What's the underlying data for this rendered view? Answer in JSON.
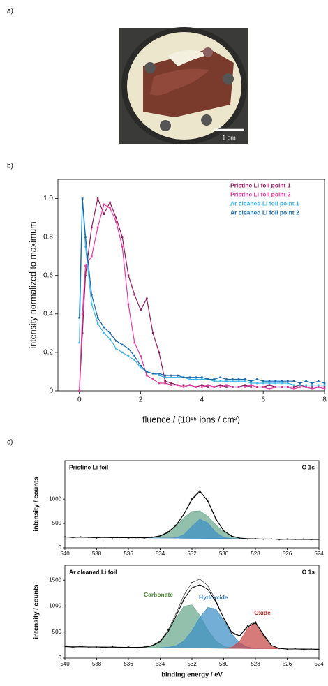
{
  "panel_labels": [
    "a)",
    "b)",
    "c)"
  ],
  "photo": {
    "scale_bar": "1 cm"
  },
  "chart_data": [
    {
      "type": "line",
      "x_label": "fluence / (10¹⁵ ions / cm²)",
      "y_label": "intensity normalized to maximum",
      "xlim": [
        -0.7,
        8
      ],
      "ylim": [
        0,
        1.1
      ],
      "xticks": [
        0,
        2,
        4,
        6,
        8
      ],
      "yticks": [
        0,
        0.2,
        0.4,
        0.6,
        0.8,
        {
          "value": 1,
          "label": "1.0"
        }
      ],
      "legend": "upper right",
      "x": [
        0,
        0.1,
        0.2,
        0.4,
        0.6,
        0.8,
        1.0,
        1.2,
        1.4,
        1.6,
        1.8,
        2.0,
        2.2,
        2.4,
        2.6,
        2.8,
        3.0,
        3.2,
        3.4,
        3.6,
        3.8,
        4.0,
        4.2,
        4.4,
        4.6,
        4.8,
        5.0,
        5.2,
        5.4,
        5.6,
        5.8,
        6.0,
        6.2,
        6.4,
        6.6,
        6.8,
        7.0,
        7.2,
        7.4,
        7.6,
        7.8,
        8.0
      ],
      "series": [
        {
          "name": "Pristine Li foil point 1",
          "color": "#8c1c5c",
          "values": [
            0,
            0.3,
            0.6,
            0.85,
            1.0,
            0.92,
            0.98,
            0.9,
            0.8,
            0.6,
            0.5,
            0.42,
            0.48,
            0.3,
            0.2,
            0.05,
            0.04,
            0.03,
            0.03,
            0.03,
            0.02,
            0.03,
            0.02,
            0.02,
            0.03,
            0.02,
            0.02,
            0.02,
            0.03,
            0.02,
            0.02,
            0.02,
            0.03,
            0.02,
            0.02,
            0.02,
            0.02,
            0.03,
            0.02,
            0.02,
            0.02,
            0.02
          ]
        },
        {
          "name": "Pristine Li foil point 2",
          "color": "#e23ca0",
          "values": [
            0,
            0.4,
            0.65,
            0.7,
            0.85,
            0.97,
            0.95,
            0.88,
            0.75,
            0.45,
            0.25,
            0.18,
            0.08,
            0.06,
            0.04,
            0.04,
            0.03,
            0.03,
            0.02,
            0.03,
            0.02,
            0.02,
            0.03,
            0.02,
            0.02,
            0.03,
            0.02,
            0.02,
            0.02,
            0.03,
            0.02,
            0.02,
            0.01,
            0.02,
            0.02,
            0.02,
            0.01,
            0.02,
            0.02,
            0.01,
            0.02,
            0.01
          ]
        },
        {
          "name": "Ar cleaned Li foil point 1",
          "color": "#3fb2e6",
          "values": [
            0.25,
            1.0,
            0.75,
            0.45,
            0.35,
            0.3,
            0.27,
            0.22,
            0.2,
            0.18,
            0.16,
            0.12,
            0.1,
            0.09,
            0.08,
            0.07,
            0.07,
            0.07,
            0.07,
            0.06,
            0.06,
            0.06,
            0.06,
            0.05,
            0.05,
            0.05,
            0.05,
            0.05,
            0.05,
            0.04,
            0.04,
            0.04,
            0.04,
            0.04,
            0.04,
            0.04,
            0.03,
            0.03,
            0.03,
            0.03,
            0.03,
            0.03
          ]
        },
        {
          "name": "Ar cleaned Li foil point 2",
          "color": "#1a68a8",
          "values": [
            0.38,
            1.0,
            0.8,
            0.5,
            0.38,
            0.33,
            0.3,
            0.26,
            0.24,
            0.22,
            0.18,
            0.13,
            0.1,
            0.09,
            0.09,
            0.08,
            0.08,
            0.08,
            0.07,
            0.07,
            0.07,
            0.07,
            0.06,
            0.06,
            0.07,
            0.06,
            0.06,
            0.06,
            0.06,
            0.05,
            0.06,
            0.05,
            0.05,
            0.05,
            0.05,
            0.05,
            0.05,
            0.04,
            0.05,
            0.04,
            0.05,
            0.04
          ]
        }
      ]
    },
    {
      "type": "xps",
      "title": "Pristine Li foil",
      "annotation": "O 1s",
      "y_label": "intensity / counts",
      "xlim": [
        540,
        524
      ],
      "ylim": [
        0,
        1790
      ],
      "xticks": [
        540,
        538,
        536,
        534,
        532,
        530,
        528,
        526,
        524
      ],
      "yticks": [
        0,
        500,
        1000
      ],
      "x": [
        540,
        539.5,
        539,
        538.5,
        538,
        537.5,
        537,
        536.5,
        536,
        535.5,
        535,
        534.5,
        534,
        533.5,
        533,
        532.5,
        532,
        531.5,
        531,
        530.5,
        530,
        529.5,
        529,
        528.5,
        528,
        527.5,
        527,
        526.5,
        526,
        525.5,
        525,
        524.5,
        524
      ],
      "measured": {
        "color": "#222222",
        "values": [
          230,
          205,
          225,
          210,
          200,
          218,
          205,
          215,
          200,
          212,
          198,
          220,
          250,
          330,
          470,
          700,
          1010,
          1175,
          950,
          590,
          345,
          240,
          200,
          180,
          190,
          175,
          185,
          165,
          180,
          170,
          180,
          165,
          175
        ]
      },
      "fit": {
        "color": "#000000",
        "values": [
          220,
          218,
          217,
          215,
          214,
          212,
          211,
          209,
          207,
          206,
          207,
          215,
          242,
          316,
          458,
          692,
          992,
          1155,
          966,
          602,
          352,
          242,
          201,
          187,
          182,
          181,
          179,
          178,
          176,
          175,
          173,
          172,
          170
        ]
      },
      "background": {
        "x": [
          540,
          524
        ],
        "values": [
          220,
          170
        ]
      },
      "components": [
        {
          "color": "#6aa88c",
          "x": [
            535,
            534.5,
            534,
            533.5,
            533,
            532.5,
            532,
            531.5,
            531,
            530.5,
            530,
            529.5,
            529,
            528.5
          ],
          "values": [
            207,
            215,
            242,
            315,
            447,
            617,
            749,
            761,
            646,
            472,
            326,
            239,
            201,
            187
          ]
        },
        {
          "color": "#3d8fc6",
          "x": [
            535,
            534.5,
            534,
            533.5,
            533,
            532.5,
            532,
            531.5,
            531,
            530.5,
            530,
            529.5,
            529,
            528.5
          ],
          "values": [
            204,
            203,
            201,
            201,
            209,
            271,
            438,
            587,
            512,
            320,
            215,
            190,
            186,
            184
          ]
        }
      ]
    },
    {
      "type": "xps",
      "title": "Ar cleaned Li foil",
      "annotation": "O 1s",
      "y_label": "intensity / counts",
      "x_label": "binding energy / eV",
      "xlim": [
        540,
        524
      ],
      "ylim": [
        0,
        1785
      ],
      "xticks": [
        540,
        538,
        536,
        534,
        532,
        530,
        528,
        526,
        524
      ],
      "yticks": [
        0,
        500,
        1000,
        1500
      ],
      "x": [
        540,
        539.5,
        539,
        538.5,
        538,
        537.5,
        537,
        536.5,
        536,
        535.5,
        535,
        534.5,
        534,
        533.5,
        533,
        532.5,
        532,
        531.5,
        531,
        530.5,
        530,
        529.5,
        529,
        528.5,
        528,
        527.5,
        527,
        526.5,
        526,
        525.5,
        525,
        524.5,
        524
      ],
      "measured": {
        "color": "#222222",
        "values": [
          230,
          205,
          225,
          210,
          215,
          200,
          222,
          205,
          215,
          200,
          218,
          245,
          330,
          540,
          860,
          1210,
          1450,
          1520,
          1390,
          1120,
          760,
          470,
          430,
          620,
          700,
          440,
          240,
          190,
          170,
          180,
          165,
          175,
          160
        ]
      },
      "fit": {
        "color": "#000000",
        "values": [
          220,
          218,
          217,
          215,
          214,
          212,
          211,
          209,
          207,
          207,
          211,
          235,
          317,
          508,
          811,
          1135,
          1353,
          1412,
          1322,
          1090,
          771,
          498,
          426,
          598,
          680,
          458,
          247,
          185,
          176,
          175,
          173,
          172,
          170
        ]
      },
      "background": {
        "x": [
          540,
          524
        ],
        "values": [
          220,
          170
        ]
      },
      "components": [
        {
          "name": "Carbonate",
          "color": "#6aa88c",
          "label_color": "#4a8a3a",
          "x": [
            535,
            534.5,
            534,
            533.5,
            533,
            532.5,
            532,
            531.5,
            531,
            530.5,
            530,
            529.5,
            529
          ],
          "values": [
            211,
            235,
            316,
            499,
            771,
            1000,
            1024,
            821,
            541,
            333,
            231,
            196,
            187
          ]
        },
        {
          "name": "Hydroxide",
          "color": "#3d8fc6",
          "label_color": "#3a7ab8",
          "x": [
            534,
            533.5,
            533,
            532.5,
            532,
            531.5,
            531,
            530.5,
            530,
            529.5,
            529,
            528.5,
            528,
            527.5
          ],
          "values": [
            202,
            209,
            238,
            331,
            524,
            784,
            973,
            947,
            728,
            469,
            294,
            214,
            188,
            182
          ]
        },
        {
          "name": "Oxide",
          "color": "#c84646",
          "label_color": "#b83030",
          "x": [
            530,
            529.5,
            529,
            528.5,
            528,
            527.5,
            527,
            526.5
          ],
          "values": [
            190,
            207,
            317,
            568,
            674,
            457,
            247,
            185
          ]
        }
      ]
    }
  ]
}
